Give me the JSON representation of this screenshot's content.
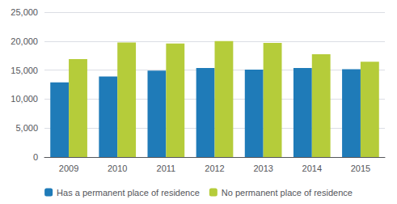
{
  "chart_data": {
    "type": "bar",
    "categories": [
      "2009",
      "2010",
      "2011",
      "2012",
      "2013",
      "2014",
      "2015"
    ],
    "series": [
      {
        "name": "Has a permanent place of residence",
        "color": "#1f7bb8",
        "values": [
          12900,
          13900,
          14900,
          15350,
          15100,
          15350,
          15150
        ]
      },
      {
        "name": "No permanent place of residence",
        "color": "#b5cc3a",
        "values": [
          16900,
          19750,
          19600,
          20000,
          19700,
          17750,
          16450
        ]
      }
    ],
    "ylim": [
      0,
      25000
    ],
    "yticks": [
      0,
      {
        "value": 5000,
        "label": "5,000"
      },
      {
        "value": 10000,
        "label": "10,000"
      },
      {
        "value": 15000,
        "label": "15,000"
      },
      {
        "value": 20000,
        "label": "20,000"
      },
      {
        "value": 25000,
        "label": "25,000"
      }
    ],
    "grid": true,
    "legend": "bottom"
  }
}
